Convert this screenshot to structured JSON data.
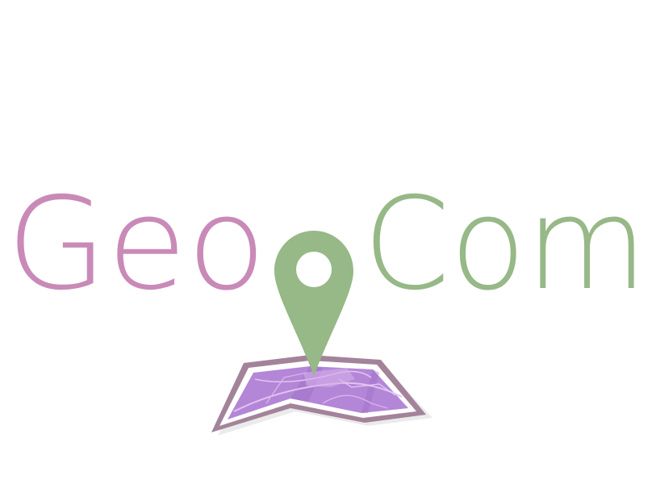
{
  "logo": {
    "word_left": "Geo",
    "word_right": "Com",
    "colors": {
      "pink": "#c98ab8",
      "green": "#97b887",
      "map_fill": "#b386d8",
      "map_border": "#a3839a",
      "white": "#ffffff"
    },
    "icons": [
      "map-pin-icon",
      "folded-map-icon"
    ]
  }
}
